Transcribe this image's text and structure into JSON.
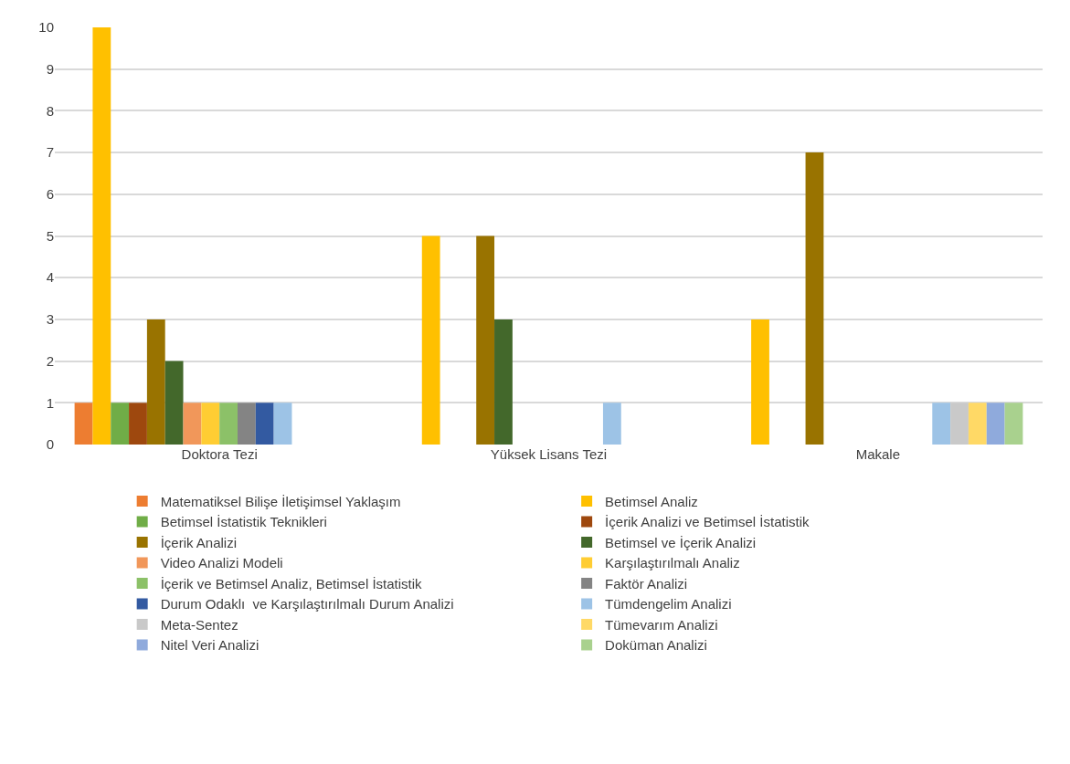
{
  "chart_data": {
    "type": "bar",
    "categories": [
      "Doktora Tezi",
      "Yüksek Lisans Tezi",
      "Makale"
    ],
    "ylim": [
      0,
      10
    ],
    "yticks": [
      0,
      1,
      2,
      3,
      4,
      5,
      6,
      7,
      8,
      9,
      10
    ],
    "grid": "y",
    "legend": "bottom",
    "series": [
      {
        "name": "Matematiksel Bilişe İletişimsel Yaklaşım",
        "color": "#ed7d31",
        "values": [
          1,
          null,
          null
        ]
      },
      {
        "name": "Betimsel Analiz",
        "color": "#ffc000",
        "values": [
          10,
          5,
          3
        ]
      },
      {
        "name": "Betimsel İstatistik Teknikleri",
        "color": "#70ad47",
        "values": [
          1,
          null,
          null
        ]
      },
      {
        "name": "İçerik Analizi ve Betimsel İstatistik",
        "color": "#9e480e",
        "values": [
          1,
          null,
          null
        ]
      },
      {
        "name": "İçerik Analizi",
        "color": "#997300",
        "values": [
          3,
          5,
          7
        ]
      },
      {
        "name": "Betimsel ve İçerik Analizi",
        "color": "#43682b",
        "values": [
          2,
          3,
          null
        ]
      },
      {
        "name": "Video Analizi Modeli",
        "color": "#f1975a",
        "values": [
          1,
          null,
          null
        ]
      },
      {
        "name": "Karşılaştırılmalı Analiz",
        "color": "#ffcd33",
        "values": [
          1,
          null,
          null
        ]
      },
      {
        "name": "İçerik ve Betimsel Analiz, Betimsel İstatistik",
        "color": "#8cc168",
        "values": [
          1,
          null,
          null
        ]
      },
      {
        "name": "Faktör Analizi",
        "color": "#848484",
        "values": [
          1,
          null,
          null
        ]
      },
      {
        "name": "Durum Odaklı  ve Karşılaştırılmalı Durum Analizi",
        "color": "#335aa1",
        "values": [
          1,
          null,
          null
        ]
      },
      {
        "name": "Tümdengelim Analizi",
        "color": "#9dc3e6",
        "values": [
          1,
          1,
          1
        ]
      },
      {
        "name": "Meta-Sentez",
        "color": "#c9c9c9",
        "values": [
          null,
          null,
          1
        ]
      },
      {
        "name": "Tümevarım Analizi",
        "color": "#ffd966",
        "values": [
          null,
          null,
          1
        ]
      },
      {
        "name": "Nitel Veri Analizi",
        "color": "#8faadc",
        "values": [
          null,
          null,
          1
        ]
      },
      {
        "name": "Doküman Analizi",
        "color": "#a9d18e",
        "values": [
          null,
          null,
          1
        ]
      }
    ]
  }
}
